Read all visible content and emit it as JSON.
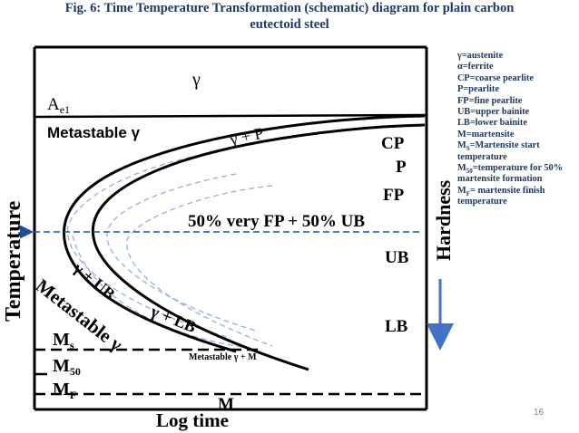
{
  "title": {
    "line1": "Fig. 6: Time Temperature Transformation (schematic) diagram for plain carbon",
    "line2": "eutectoid steel"
  },
  "axes": {
    "y_label": "Temperature",
    "x_label": "Log time",
    "right_label": "Hardness"
  },
  "regions": {
    "gamma": "γ",
    "ae1": "A",
    "ae1_sub": "e1",
    "metastable_top": "Metastable γ",
    "gamma_p": "γ + P",
    "cp": "CP",
    "p": "P",
    "fp": "FP",
    "mix": "50% very FP + 50% UB",
    "ub": "UB",
    "gamma_ub": "γ + UB",
    "metastable_diag": "Metastable γ",
    "gamma_lb": "γ + LB",
    "lb": "LB",
    "ms": "M",
    "ms_sub": "s",
    "m50": "M",
    "m50_sub": "50",
    "mf": "M",
    "mf_sub": "F",
    "metastable_m": "Metastable γ + M",
    "m": "M"
  },
  "legend": [
    {
      "text": "γ=austenite"
    },
    {
      "text": "α=ferrite"
    },
    {
      "text": "CP=coarse pearlite"
    },
    {
      "text": "P=pearlite"
    },
    {
      "text": "FP=fine pearlite"
    },
    {
      "text": "UB=upper bainite"
    },
    {
      "text": "LB=lower bainite"
    },
    {
      "text": "M=martensite"
    },
    {
      "pre": "M",
      "sub": "S",
      "post": "=Martensite start temperature"
    },
    {
      "pre": "M",
      "sub": "50",
      "post": "=temperature for 50% martensite formation"
    },
    {
      "pre": "M",
      "sub": "F",
      "post": "= martensite finish temperature"
    }
  ],
  "page_number": "16",
  "colors": {
    "title": "#1f3864",
    "curve": "#000000",
    "dashed_guide": "#1f4e9a",
    "light_curve": "#8eaadb",
    "arrow": "#4472c4"
  }
}
